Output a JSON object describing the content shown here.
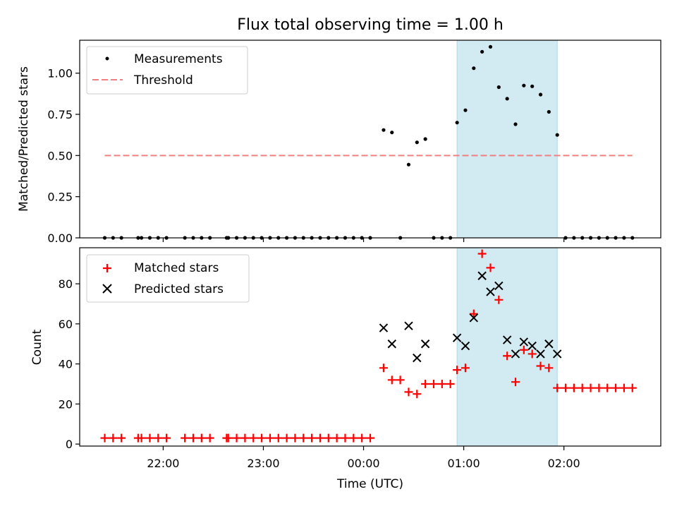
{
  "title": "Flux total observing time = 1.00 h",
  "chart_data": [
    {
      "type": "scatter",
      "ylabel": "Matched/Predicted stars",
      "ylim": [
        0,
        1.2
      ],
      "xlim": [
        "21:10",
        "02:58"
      ],
      "yticks": [
        "0.00",
        "0.25",
        "0.50",
        "0.75",
        "1.00"
      ],
      "legend_position": "top-left",
      "shaded_interval": [
        "00:56",
        "01:56"
      ],
      "shade_color": "#add8e6",
      "series": [
        {
          "name": "Measurements",
          "marker": "dot",
          "color": "#000000",
          "points": [
            [
              "21:25",
              0
            ],
            [
              "21:30",
              0
            ],
            [
              "21:35",
              0
            ],
            [
              "21:45",
              0
            ],
            [
              "21:47",
              0
            ],
            [
              "21:52",
              0
            ],
            [
              "21:57",
              0
            ],
            [
              "22:02",
              0
            ],
            [
              "22:13",
              0
            ],
            [
              "22:18",
              0
            ],
            [
              "22:23",
              0
            ],
            [
              "22:28",
              0
            ],
            [
              "22:38",
              0
            ],
            [
              "22:39",
              0
            ],
            [
              "22:44",
              0
            ],
            [
              "22:49",
              0
            ],
            [
              "22:54",
              0
            ],
            [
              "22:59",
              0
            ],
            [
              "23:04",
              0
            ],
            [
              "23:09",
              0
            ],
            [
              "23:14",
              0
            ],
            [
              "23:19",
              0
            ],
            [
              "23:24",
              0
            ],
            [
              "23:29",
              0
            ],
            [
              "23:34",
              0
            ],
            [
              "23:39",
              0
            ],
            [
              "23:44",
              0
            ],
            [
              "23:49",
              0
            ],
            [
              "23:54",
              0
            ],
            [
              "23:59",
              0
            ],
            [
              "00:04",
              0
            ],
            [
              "00:12",
              0.655
            ],
            [
              "00:17",
              0.64
            ],
            [
              "00:22",
              0
            ],
            [
              "00:27",
              0.445
            ],
            [
              "00:32",
              0.58
            ],
            [
              "00:37",
              0.6
            ],
            [
              "00:42",
              0
            ],
            [
              "00:47",
              0
            ],
            [
              "00:52",
              0
            ],
            [
              "00:56",
              0.7
            ],
            [
              "01:01",
              0.775
            ],
            [
              "01:06",
              1.03
            ],
            [
              "01:11",
              1.13
            ],
            [
              "01:16",
              1.16
            ],
            [
              "01:21",
              0.915
            ],
            [
              "01:26",
              0.845
            ],
            [
              "01:31",
              0.69
            ],
            [
              "01:36",
              0.925
            ],
            [
              "01:41",
              0.92
            ],
            [
              "01:46",
              0.87
            ],
            [
              "01:51",
              0.765
            ],
            [
              "01:56",
              0.625
            ],
            [
              "02:01",
              0
            ],
            [
              "02:06",
              0
            ],
            [
              "02:11",
              0
            ],
            [
              "02:16",
              0
            ],
            [
              "02:21",
              0
            ],
            [
              "02:26",
              0
            ],
            [
              "02:31",
              0
            ],
            [
              "02:36",
              0
            ],
            [
              "02:41",
              0
            ]
          ]
        },
        {
          "name": "Threshold",
          "marker": "dashed-line",
          "color": "#f08080",
          "points": [
            [
              "21:25",
              0.5
            ],
            [
              "02:41",
              0.5
            ]
          ]
        }
      ]
    },
    {
      "type": "scatter",
      "xlabel": "Time (UTC)",
      "ylabel": "Count",
      "ylim": [
        -1,
        98
      ],
      "xlim": [
        "21:10",
        "02:58"
      ],
      "xticks": [
        "22:00",
        "23:00",
        "00:00",
        "01:00",
        "02:00"
      ],
      "yticks": [
        "0",
        "20",
        "40",
        "60",
        "80"
      ],
      "legend_position": "top-left",
      "shaded_interval": [
        "00:56",
        "01:56"
      ],
      "shade_color": "#add8e6",
      "series": [
        {
          "name": "Matched stars",
          "marker": "plus",
          "color": "#ff0000",
          "points": [
            [
              "21:25",
              3
            ],
            [
              "21:30",
              3
            ],
            [
              "21:35",
              3
            ],
            [
              "21:45",
              3
            ],
            [
              "21:47",
              3
            ],
            [
              "21:52",
              3
            ],
            [
              "21:57",
              3
            ],
            [
              "22:02",
              3
            ],
            [
              "22:13",
              3
            ],
            [
              "22:18",
              3
            ],
            [
              "22:23",
              3
            ],
            [
              "22:28",
              3
            ],
            [
              "22:38",
              3
            ],
            [
              "22:39",
              3
            ],
            [
              "22:44",
              3
            ],
            [
              "22:49",
              3
            ],
            [
              "22:54",
              3
            ],
            [
              "22:59",
              3
            ],
            [
              "23:04",
              3
            ],
            [
              "23:09",
              3
            ],
            [
              "23:14",
              3
            ],
            [
              "23:19",
              3
            ],
            [
              "23:24",
              3
            ],
            [
              "23:29",
              3
            ],
            [
              "23:34",
              3
            ],
            [
              "23:39",
              3
            ],
            [
              "23:44",
              3
            ],
            [
              "23:49",
              3
            ],
            [
              "23:54",
              3
            ],
            [
              "23:59",
              3
            ],
            [
              "00:04",
              3
            ],
            [
              "00:12",
              38
            ],
            [
              "00:17",
              32
            ],
            [
              "00:22",
              32
            ],
            [
              "00:27",
              26
            ],
            [
              "00:32",
              25
            ],
            [
              "00:37",
              30
            ],
            [
              "00:42",
              30
            ],
            [
              "00:47",
              30
            ],
            [
              "00:52",
              30
            ],
            [
              "00:56",
              37
            ],
            [
              "01:01",
              38
            ],
            [
              "01:06",
              65
            ],
            [
              "01:11",
              95
            ],
            [
              "01:16",
              88
            ],
            [
              "01:21",
              72
            ],
            [
              "01:26",
              44
            ],
            [
              "01:31",
              31
            ],
            [
              "01:36",
              47
            ],
            [
              "01:41",
              45
            ],
            [
              "01:46",
              39
            ],
            [
              "01:51",
              38
            ],
            [
              "01:56",
              28
            ],
            [
              "02:01",
              28
            ],
            [
              "02:06",
              28
            ],
            [
              "02:11",
              28
            ],
            [
              "02:16",
              28
            ],
            [
              "02:21",
              28
            ],
            [
              "02:26",
              28
            ],
            [
              "02:31",
              28
            ],
            [
              "02:36",
              28
            ],
            [
              "02:41",
              28
            ]
          ]
        },
        {
          "name": "Predicted stars",
          "marker": "x",
          "color": "#000000",
          "points": [
            [
              "00:12",
              58
            ],
            [
              "00:17",
              50
            ],
            [
              "00:27",
              59
            ],
            [
              "00:32",
              43
            ],
            [
              "00:37",
              50
            ],
            [
              "00:56",
              53
            ],
            [
              "01:01",
              49
            ],
            [
              "01:06",
              63
            ],
            [
              "01:11",
              84
            ],
            [
              "01:16",
              76
            ],
            [
              "01:21",
              79
            ],
            [
              "01:26",
              52
            ],
            [
              "01:31",
              45
            ],
            [
              "01:36",
              51
            ],
            [
              "01:41",
              49
            ],
            [
              "01:46",
              45
            ],
            [
              "01:51",
              50
            ],
            [
              "01:56",
              45
            ]
          ]
        }
      ]
    }
  ]
}
